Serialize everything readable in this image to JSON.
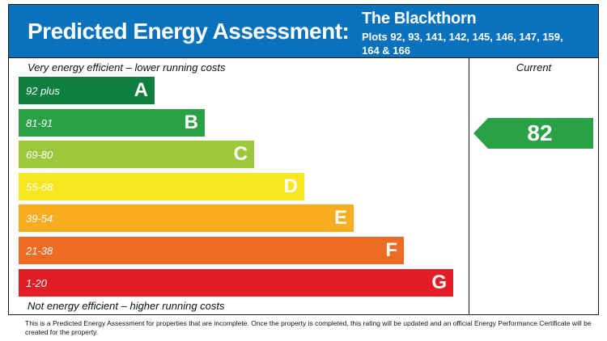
{
  "header": {
    "title": "Predicted Energy Assessment:",
    "property_name": "The Blackthorn",
    "plots_line1": "Plots 92, 93, 141, 142, 145, 146, 147, 159,",
    "plots_line2": "164 & 166"
  },
  "current_label": "Current",
  "caption_top": "Very energy efficient – lower running costs",
  "caption_bottom": "Not energy efficient – higher running costs",
  "footnote": "This is a Predicted Energy Assessment for properties that are incomplete. Once the property is completed, this rating will be updated and an official Energy Performance Certificate will be created for the property.",
  "chart_data": {
    "type": "bar",
    "orientation": "horizontal",
    "bands": [
      {
        "letter": "A",
        "range": "92 plus",
        "color": "#0f7f3f"
      },
      {
        "letter": "B",
        "range": "81-91",
        "color": "#2aa146"
      },
      {
        "letter": "C",
        "range": "69-80",
        "color": "#9dc83c"
      },
      {
        "letter": "D",
        "range": "55-68",
        "color": "#f6e620"
      },
      {
        "letter": "E",
        "range": "39-54",
        "color": "#f7ad1f"
      },
      {
        "letter": "F",
        "range": "21-38",
        "color": "#ee6b24"
      },
      {
        "letter": "G",
        "range": "1-20",
        "color": "#e31d26"
      }
    ],
    "current": {
      "value": 82,
      "band": "B",
      "color": "#2aa146"
    }
  }
}
